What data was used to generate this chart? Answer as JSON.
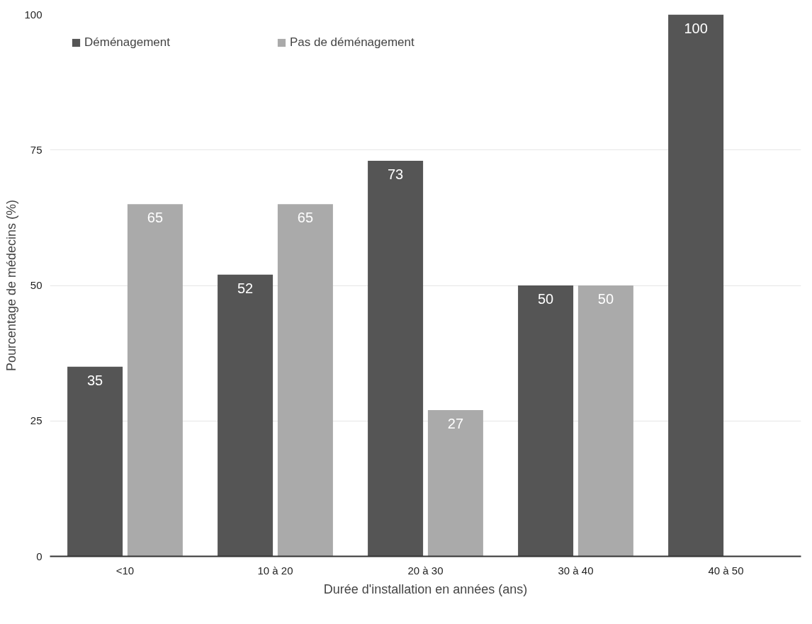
{
  "chart_data": {
    "type": "bar",
    "xlabel": "Durée d'installation en années (ans)",
    "ylabel": "Pourcentage de médecins (%)",
    "categories": [
      "<10",
      "10 à 20",
      "20 à 30",
      "30 à 40",
      "40 à 50"
    ],
    "series": [
      {
        "name": "Déménagement",
        "color": "#555555",
        "values": [
          35,
          52,
          73,
          50,
          100
        ],
        "value_labels": [
          "35",
          "52",
          "73",
          "50",
          "100"
        ]
      },
      {
        "name": "Pas de déménagement",
        "color": "#aaaaaa",
        "values": [
          65,
          65,
          27,
          50,
          0
        ],
        "value_labels": [
          "65",
          "65",
          "27",
          "50",
          null
        ]
      }
    ],
    "ylim": [
      0,
      100
    ],
    "yticks": [
      0,
      25,
      50,
      75,
      100
    ],
    "grid": "y",
    "legend": "top left"
  }
}
